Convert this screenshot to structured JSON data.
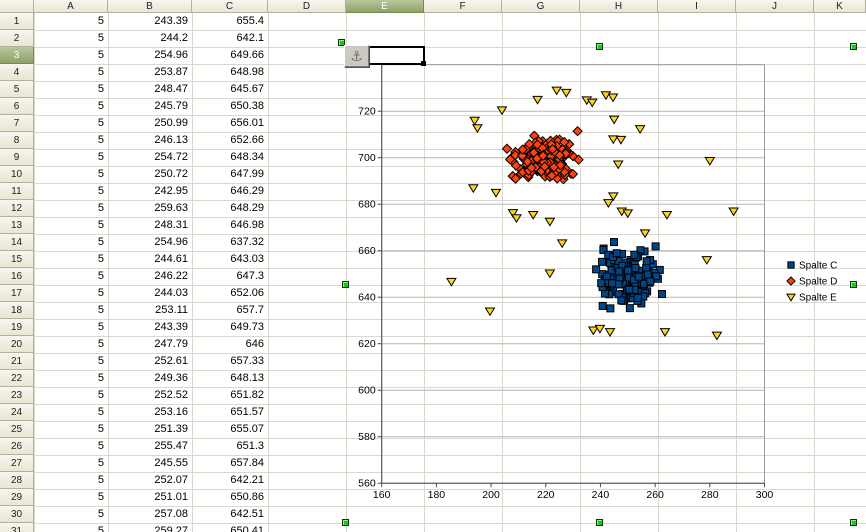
{
  "app": {
    "description": "Spreadsheet (Calc) sheet with embedded selected scatter chart object"
  },
  "spreadsheet": {
    "column_headers": [
      "A",
      "B",
      "C",
      "D",
      "E",
      "F",
      "G",
      "H",
      "I",
      "J",
      "K"
    ],
    "row_headers": [
      "1",
      "2",
      "3",
      "4",
      "5",
      "6",
      "7",
      "8",
      "9",
      "10",
      "11",
      "12",
      "13",
      "14",
      "15",
      "16",
      "17",
      "18",
      "19",
      "20",
      "21",
      "22",
      "23",
      "24",
      "25",
      "26",
      "27",
      "28",
      "29",
      "30",
      "31"
    ],
    "selected_cell": {
      "column": "E",
      "row": 3
    },
    "cells": [
      [
        "5",
        "243.39",
        "655.4"
      ],
      [
        "5",
        "244.2",
        "642.1"
      ],
      [
        "5",
        "254.96",
        "649.66"
      ],
      [
        "5",
        "253.87",
        "648.98"
      ],
      [
        "5",
        "248.47",
        "645.67"
      ],
      [
        "5",
        "245.79",
        "650.38"
      ],
      [
        "5",
        "250.99",
        "656.01"
      ],
      [
        "5",
        "246.13",
        "652.66"
      ],
      [
        "5",
        "254.72",
        "648.34"
      ],
      [
        "5",
        "250.72",
        "647.99"
      ],
      [
        "5",
        "242.95",
        "646.29"
      ],
      [
        "5",
        "259.63",
        "648.29"
      ],
      [
        "5",
        "248.31",
        "646.98"
      ],
      [
        "5",
        "254.96",
        "637.32"
      ],
      [
        "5",
        "244.61",
        "643.03"
      ],
      [
        "5",
        "246.22",
        "647.3"
      ],
      [
        "5",
        "244.03",
        "652.06"
      ],
      [
        "5",
        "253.11",
        "657.7"
      ],
      [
        "5",
        "243.39",
        "649.73"
      ],
      [
        "5",
        "247.79",
        "646"
      ],
      [
        "5",
        "252.61",
        "657.33"
      ],
      [
        "5",
        "249.36",
        "648.13"
      ],
      [
        "5",
        "252.52",
        "651.82"
      ],
      [
        "5",
        "253.16",
        "651.57"
      ],
      [
        "5",
        "251.39",
        "655.07"
      ],
      [
        "5",
        "255.47",
        "651.3"
      ],
      [
        "5",
        "245.55",
        "657.84"
      ],
      [
        "5",
        "252.07",
        "642.21"
      ],
      [
        "5",
        "251.01",
        "650.86"
      ],
      [
        "5",
        "257.08",
        "642.51"
      ],
      [
        "5",
        "259.27",
        "650.41"
      ]
    ]
  },
  "colors": {
    "grid_line": "#dbd8d0",
    "header_border": "#b3b0a0",
    "chart_gridline": "#b5b5b5",
    "chart_wall_border": "#9a9a9a",
    "chart_axis": "#4d4d4d",
    "series_blue": "#004586",
    "series_red": "#ff420e",
    "series_yellow": "#ffd320",
    "marker_outline": "#000000",
    "selection_handle": "#21c421"
  },
  "anchor": {
    "glyph": "⚓",
    "meaning": "object-anchor"
  },
  "chart_data": {
    "type": "scatter",
    "title": "",
    "xlabel": "",
    "ylabel": "",
    "xlim": [
      160,
      300
    ],
    "ylim": [
      560,
      740
    ],
    "x_ticks": [
      160,
      180,
      200,
      220,
      240,
      260,
      280,
      300
    ],
    "y_ticks": [
      560,
      580,
      600,
      620,
      640,
      660,
      680,
      700,
      720
    ],
    "grid": "horizontal-only",
    "legend_position": "right",
    "legend": [
      {
        "label": "Spalte C",
        "marker": "square",
        "color": "#004586"
      },
      {
        "label": "Spalte D",
        "marker": "diamond",
        "color": "#ff420e"
      },
      {
        "label": "Spalte E",
        "marker": "triangle-down",
        "color": "#ffd320"
      }
    ],
    "series": [
      {
        "name": "Spalte C",
        "marker": "square",
        "color": "#004586",
        "points": [
          [
            243.39,
            655.4
          ],
          [
            244.2,
            642.1
          ],
          [
            254.96,
            649.66
          ],
          [
            253.87,
            648.98
          ],
          [
            248.47,
            645.67
          ],
          [
            245.79,
            650.38
          ],
          [
            250.99,
            656.01
          ],
          [
            246.13,
            652.66
          ],
          [
            254.72,
            648.34
          ],
          [
            250.72,
            647.99
          ],
          [
            242.95,
            646.29
          ],
          [
            259.63,
            648.29
          ],
          [
            248.31,
            646.98
          ],
          [
            254.96,
            637.32
          ],
          [
            244.61,
            643.03
          ],
          [
            246.22,
            647.3
          ],
          [
            244.03,
            652.06
          ],
          [
            253.11,
            657.7
          ],
          [
            243.39,
            649.73
          ],
          [
            247.79,
            646
          ],
          [
            252.61,
            657.33
          ],
          [
            249.36,
            648.13
          ],
          [
            252.52,
            651.82
          ],
          [
            253.16,
            651.57
          ],
          [
            251.39,
            655.07
          ],
          [
            255.47,
            651.3
          ],
          [
            245.55,
            657.84
          ],
          [
            252.07,
            642.21
          ],
          [
            251.01,
            650.86
          ],
          [
            257.08,
            642.51
          ],
          [
            259.27,
            650.41
          ]
        ],
        "cluster_estimate": {
          "cx": 250.3,
          "cy": 649.8,
          "sx": 5.1,
          "sy": 5.9,
          "n": 145,
          "seed": 20230
        }
      },
      {
        "name": "Spalte D",
        "marker": "diamond",
        "color": "#ff420e",
        "points": [],
        "cluster_estimate": {
          "cx": 219.6,
          "cy": 699.7,
          "sx": 5.6,
          "sy": 5.0,
          "n": 175,
          "seed": 991
        }
      },
      {
        "name": "Spalte E",
        "marker": "triangle-down",
        "color": "#ffd320",
        "points": [
          [
            217,
            725
          ],
          [
            224,
            729
          ],
          [
            227.5,
            728
          ],
          [
            235,
            724.8
          ],
          [
            237,
            723.8
          ],
          [
            242,
            727
          ],
          [
            244.6,
            726
          ],
          [
            204,
            720.5
          ],
          [
            194,
            716
          ],
          [
            195,
            712.8
          ],
          [
            245,
            716.5
          ],
          [
            254.5,
            712.4
          ],
          [
            244.7,
            708
          ],
          [
            247.5,
            707.8
          ],
          [
            246.5,
            697.2
          ],
          [
            280,
            698.7
          ],
          [
            193.5,
            687
          ],
          [
            201.8,
            685
          ],
          [
            244.7,
            683.5
          ],
          [
            242.9,
            680.6
          ],
          [
            247.8,
            677
          ],
          [
            250,
            676.2
          ],
          [
            208,
            676.3
          ],
          [
            209.3,
            674.1
          ],
          [
            215.4,
            675.5
          ],
          [
            221.5,
            672.6
          ],
          [
            264.3,
            675.5
          ],
          [
            288.7,
            677
          ],
          [
            226,
            663.3
          ],
          [
            256.3,
            667.6
          ],
          [
            278.9,
            656.1
          ],
          [
            185.5,
            646.7
          ],
          [
            221.5,
            650.3
          ],
          [
            199.6,
            634
          ],
          [
            237.4,
            625.8
          ],
          [
            239.8,
            626.5
          ],
          [
            243.5,
            625.1
          ],
          [
            263.6,
            625.1
          ],
          [
            282.6,
            623.6
          ]
        ]
      }
    ]
  }
}
